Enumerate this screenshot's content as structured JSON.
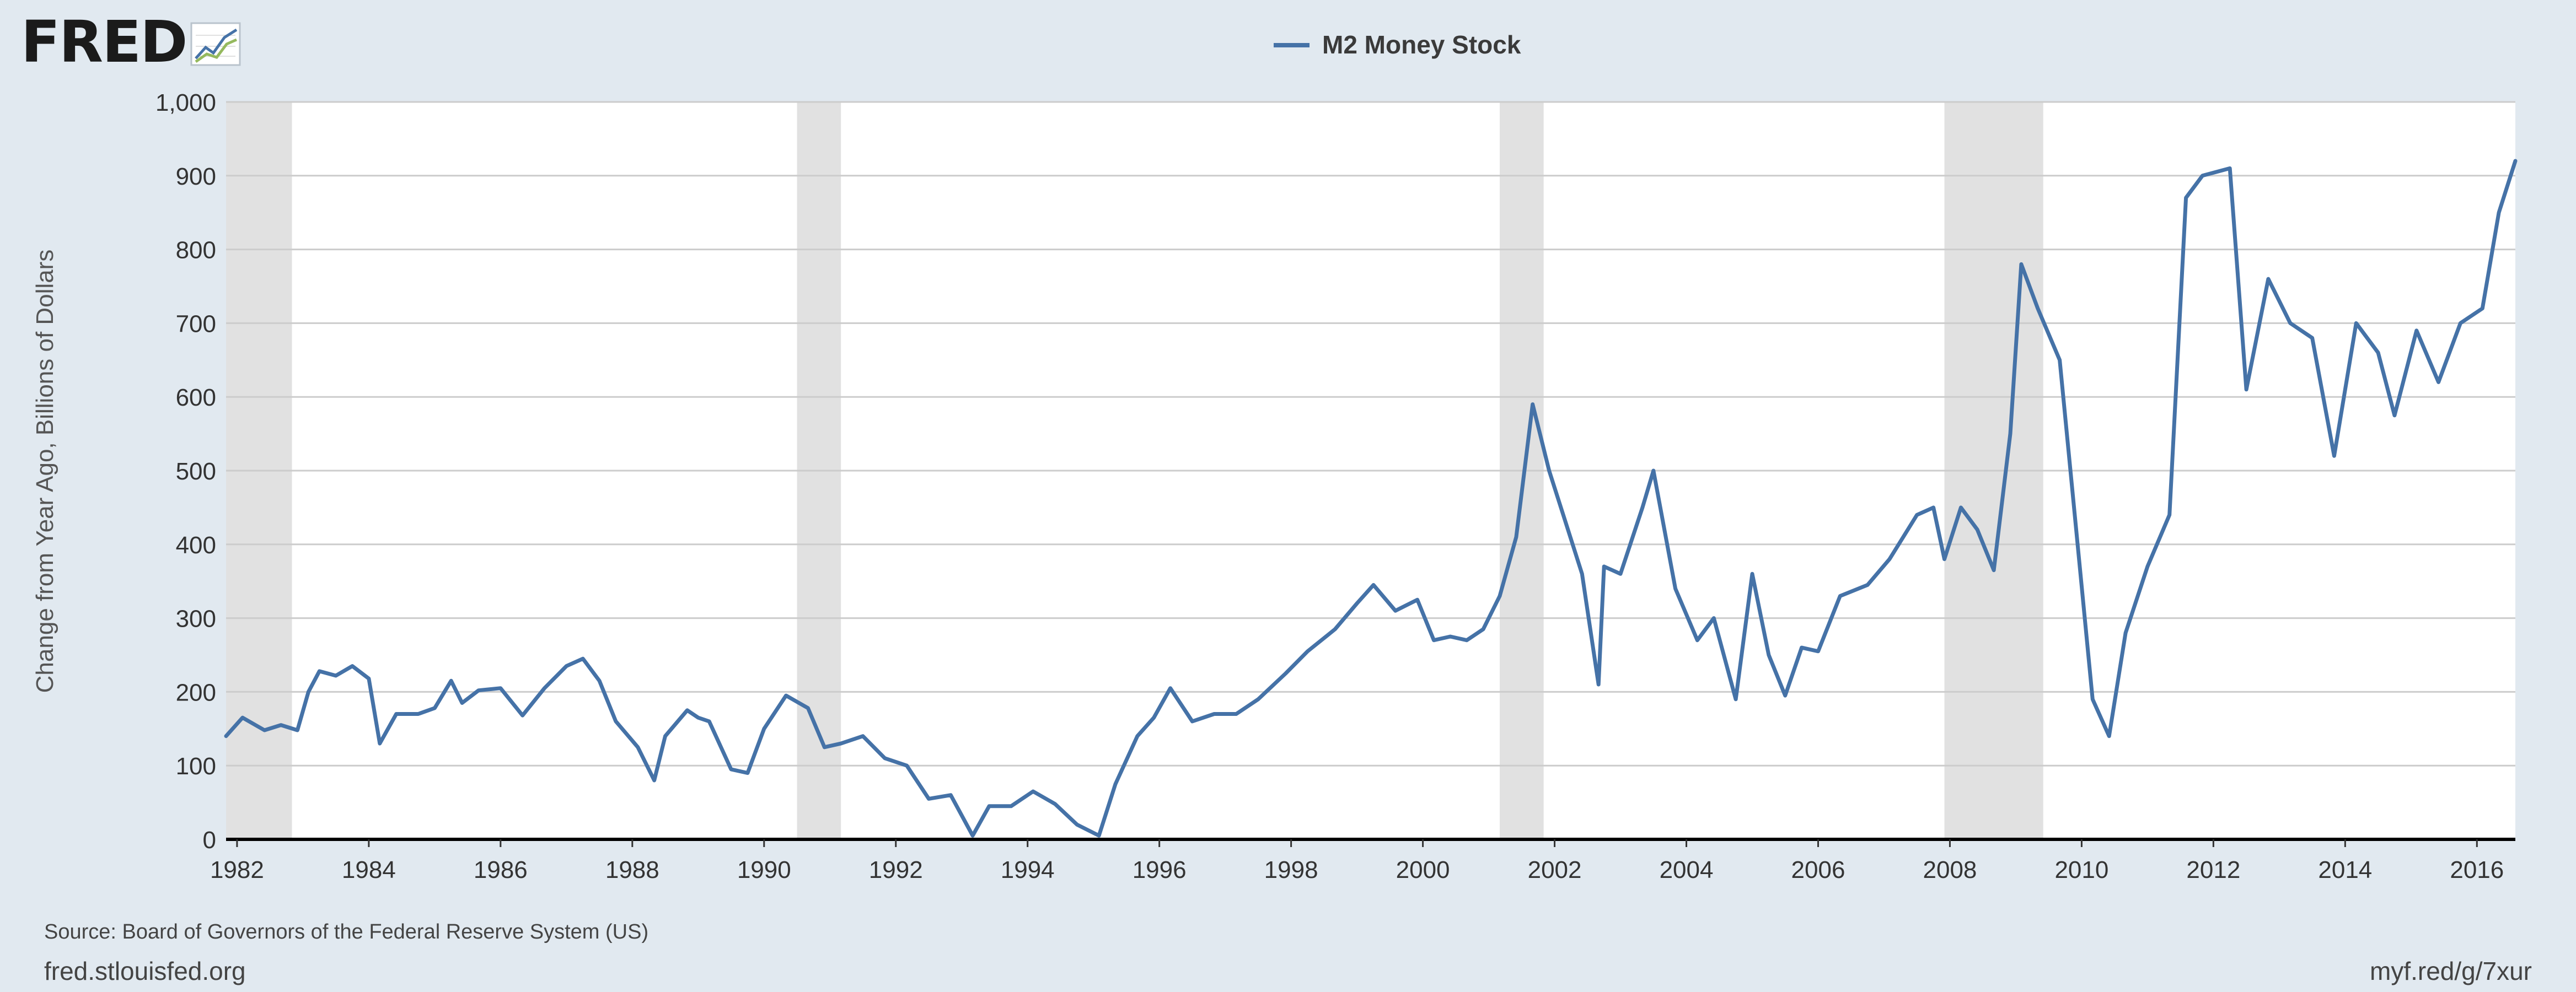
{
  "branding": {
    "logo_text": "FRED",
    "logo_icon": "chart-line-icon"
  },
  "chart_data": {
    "type": "line",
    "title": "",
    "series": [
      {
        "name": "M2 Money Stock",
        "color": "#4572a7",
        "points": [
          [
            "1981-11",
            140
          ],
          [
            "1982-02",
            165
          ],
          [
            "1982-06",
            148
          ],
          [
            "1982-09",
            155
          ],
          [
            "1982-12",
            148
          ],
          [
            "1983-02",
            200
          ],
          [
            "1983-04",
            228
          ],
          [
            "1983-07",
            222
          ],
          [
            "1983-10",
            235
          ],
          [
            "1984-01",
            218
          ],
          [
            "1984-03",
            130
          ],
          [
            "1984-06",
            170
          ],
          [
            "1984-10",
            170
          ],
          [
            "1985-01",
            178
          ],
          [
            "1985-04",
            215
          ],
          [
            "1985-06",
            185
          ],
          [
            "1985-09",
            202
          ],
          [
            "1986-01",
            205
          ],
          [
            "1986-05",
            168
          ],
          [
            "1986-09",
            205
          ],
          [
            "1987-01",
            235
          ],
          [
            "1987-04",
            245
          ],
          [
            "1987-07",
            215
          ],
          [
            "1987-10",
            160
          ],
          [
            "1988-02",
            125
          ],
          [
            "1988-05",
            80
          ],
          [
            "1988-07",
            140
          ],
          [
            "1988-11",
            175
          ],
          [
            "1989-01",
            165
          ],
          [
            "1989-03",
            160
          ],
          [
            "1989-07",
            95
          ],
          [
            "1989-10",
            90
          ],
          [
            "1990-01",
            150
          ],
          [
            "1990-05",
            195
          ],
          [
            "1990-09",
            178
          ],
          [
            "1990-12",
            125
          ],
          [
            "1991-03",
            130
          ],
          [
            "1991-07",
            140
          ],
          [
            "1991-11",
            110
          ],
          [
            "1992-03",
            100
          ],
          [
            "1992-07",
            55
          ],
          [
            "1992-11",
            60
          ],
          [
            "1993-03",
            5
          ],
          [
            "1993-06",
            45
          ],
          [
            "1993-10",
            45
          ],
          [
            "1994-02",
            65
          ],
          [
            "1994-06",
            48
          ],
          [
            "1994-10",
            20
          ],
          [
            "1995-02",
            5
          ],
          [
            "1995-05",
            75
          ],
          [
            "1995-09",
            140
          ],
          [
            "1995-12",
            165
          ],
          [
            "1996-03",
            205
          ],
          [
            "1996-07",
            160
          ],
          [
            "1996-11",
            170
          ],
          [
            "1997-03",
            170
          ],
          [
            "1997-07",
            190
          ],
          [
            "1997-12",
            225
          ],
          [
            "1998-04",
            255
          ],
          [
            "1998-09",
            285
          ],
          [
            "1999-01",
            320
          ],
          [
            "1999-04",
            345
          ],
          [
            "1999-08",
            310
          ],
          [
            "1999-12",
            325
          ],
          [
            "2000-03",
            270
          ],
          [
            "2000-06",
            275
          ],
          [
            "2000-09",
            270
          ],
          [
            "2000-12",
            285
          ],
          [
            "2001-03",
            330
          ],
          [
            "2001-06",
            410
          ],
          [
            "2001-09",
            590
          ],
          [
            "2001-12",
            500
          ],
          [
            "2002-03",
            430
          ],
          [
            "2002-06",
            360
          ],
          [
            "2002-09",
            210
          ],
          [
            "2002-10",
            370
          ],
          [
            "2003-01",
            360
          ],
          [
            "2003-05",
            450
          ],
          [
            "2003-07",
            500
          ],
          [
            "2003-11",
            340
          ],
          [
            "2004-03",
            270
          ],
          [
            "2004-06",
            300
          ],
          [
            "2004-10",
            190
          ],
          [
            "2005-01",
            360
          ],
          [
            "2005-04",
            250
          ],
          [
            "2005-07",
            195
          ],
          [
            "2005-10",
            260
          ],
          [
            "2006-01",
            255
          ],
          [
            "2006-05",
            330
          ],
          [
            "2006-10",
            345
          ],
          [
            "2007-02",
            380
          ],
          [
            "2007-07",
            440
          ],
          [
            "2007-10",
            450
          ],
          [
            "2007-12",
            380
          ],
          [
            "2008-03",
            450
          ],
          [
            "2008-06",
            420
          ],
          [
            "2008-09",
            365
          ],
          [
            "2008-12",
            550
          ],
          [
            "2009-02",
            780
          ],
          [
            "2009-05",
            720
          ],
          [
            "2009-09",
            650
          ],
          [
            "2009-12",
            420
          ],
          [
            "2010-03",
            190
          ],
          [
            "2010-06",
            140
          ],
          [
            "2010-09",
            280
          ],
          [
            "2011-01",
            370
          ],
          [
            "2011-05",
            440
          ],
          [
            "2011-08",
            870
          ],
          [
            "2011-11",
            900
          ],
          [
            "2012-04",
            910
          ],
          [
            "2012-07",
            610
          ],
          [
            "2012-11",
            760
          ],
          [
            "2013-03",
            700
          ],
          [
            "2013-07",
            680
          ],
          [
            "2013-11",
            520
          ],
          [
            "2014-03",
            700
          ],
          [
            "2014-07",
            660
          ],
          [
            "2014-10",
            575
          ],
          [
            "2015-02",
            690
          ],
          [
            "2015-06",
            620
          ],
          [
            "2015-10",
            700
          ],
          [
            "2016-02",
            720
          ],
          [
            "2016-05",
            850
          ],
          [
            "2016-08",
            920
          ]
        ]
      }
    ],
    "recessions": [
      [
        "1981-07",
        "1982-11"
      ],
      [
        "1990-07",
        "1991-03"
      ],
      [
        "2001-03",
        "2001-11"
      ],
      [
        "2007-12",
        "2009-06"
      ]
    ],
    "x_ticks": [
      "1982",
      "1984",
      "1986",
      "1988",
      "1990",
      "1992",
      "1994",
      "1996",
      "1998",
      "2000",
      "2002",
      "2004",
      "2006",
      "2008",
      "2010",
      "2012",
      "2014",
      "2016"
    ],
    "y_ticks": [
      0,
      100,
      200,
      300,
      400,
      500,
      600,
      700,
      800,
      900,
      1000
    ],
    "y_tick_labels": [
      "0",
      "100",
      "200",
      "300",
      "400",
      "500",
      "600",
      "700",
      "800",
      "900",
      "1,000"
    ],
    "xlim": [
      "1981-11",
      "2016-08"
    ],
    "ylim": [
      0,
      1000
    ],
    "ylabel": "Change from Year Ago, Billions of Dollars",
    "xlabel": "",
    "legend": "top-center",
    "grid": true
  },
  "footer": {
    "source": "Source: Board of Governors of the Federal Reserve System (US)",
    "site": "fred.stlouisfed.org",
    "short_link": "myf.red/g/7xur"
  }
}
